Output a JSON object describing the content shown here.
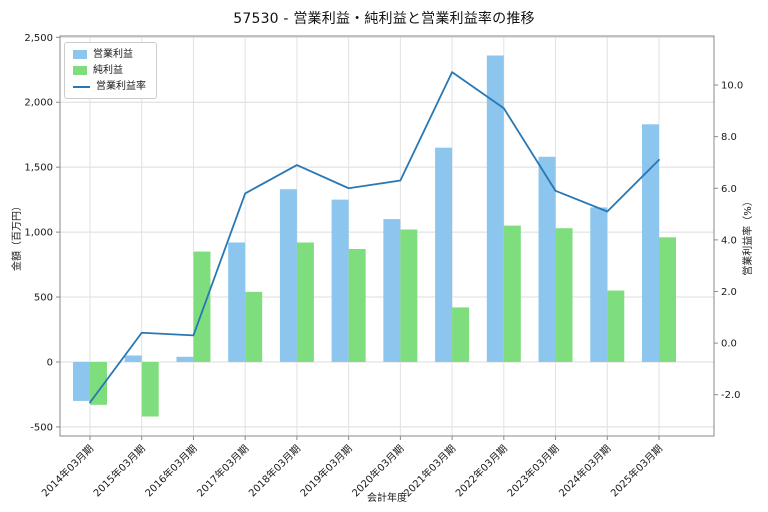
{
  "title": "57530 - 営業利益・純利益と営業利益率の推移",
  "chart_data": {
    "type": "bar",
    "categories": [
      "2014年03月期",
      "2015年03月期",
      "2016年03月期",
      "2017年03月期",
      "2018年03月期",
      "2019年03月期",
      "2020年03月期",
      "2021年03月期",
      "2022年03月期",
      "2023年03月期",
      "2024年03月期",
      "2025年03月期"
    ],
    "series": [
      {
        "name": "営業利益",
        "kind": "bar",
        "color": "#8CC5EE",
        "values": [
          -300,
          50,
          40,
          920,
          1330,
          1250,
          1100,
          1650,
          2360,
          1580,
          1190,
          1830
        ]
      },
      {
        "name": "純利益",
        "kind": "bar",
        "color": "#7EDE7E",
        "values": [
          -330,
          -420,
          850,
          540,
          920,
          870,
          1020,
          420,
          1050,
          1030,
          550,
          960
        ]
      },
      {
        "name": "営業利益率",
        "kind": "line",
        "color": "#2878B4",
        "axis": "right",
        "values": [
          -2.3,
          0.4,
          0.3,
          5.8,
          6.9,
          6.0,
          6.3,
          10.5,
          9.1,
          5.9,
          5.1,
          7.1
        ]
      }
    ],
    "xlabel": "会計年度",
    "ylabel_left": "金額（百万円）",
    "ylabel_right": "営業利益率（%）",
    "ylim_left": [
      -570,
      2510
    ],
    "yticks_left": [
      -500,
      0,
      500,
      1000,
      1500,
      2000,
      2500
    ],
    "ylim_right": [
      -3.6,
      11.9
    ],
    "yticks_right": [
      -2,
      0,
      2,
      4,
      6,
      8,
      10
    ],
    "grid": true,
    "legend_position": "upper-left"
  }
}
